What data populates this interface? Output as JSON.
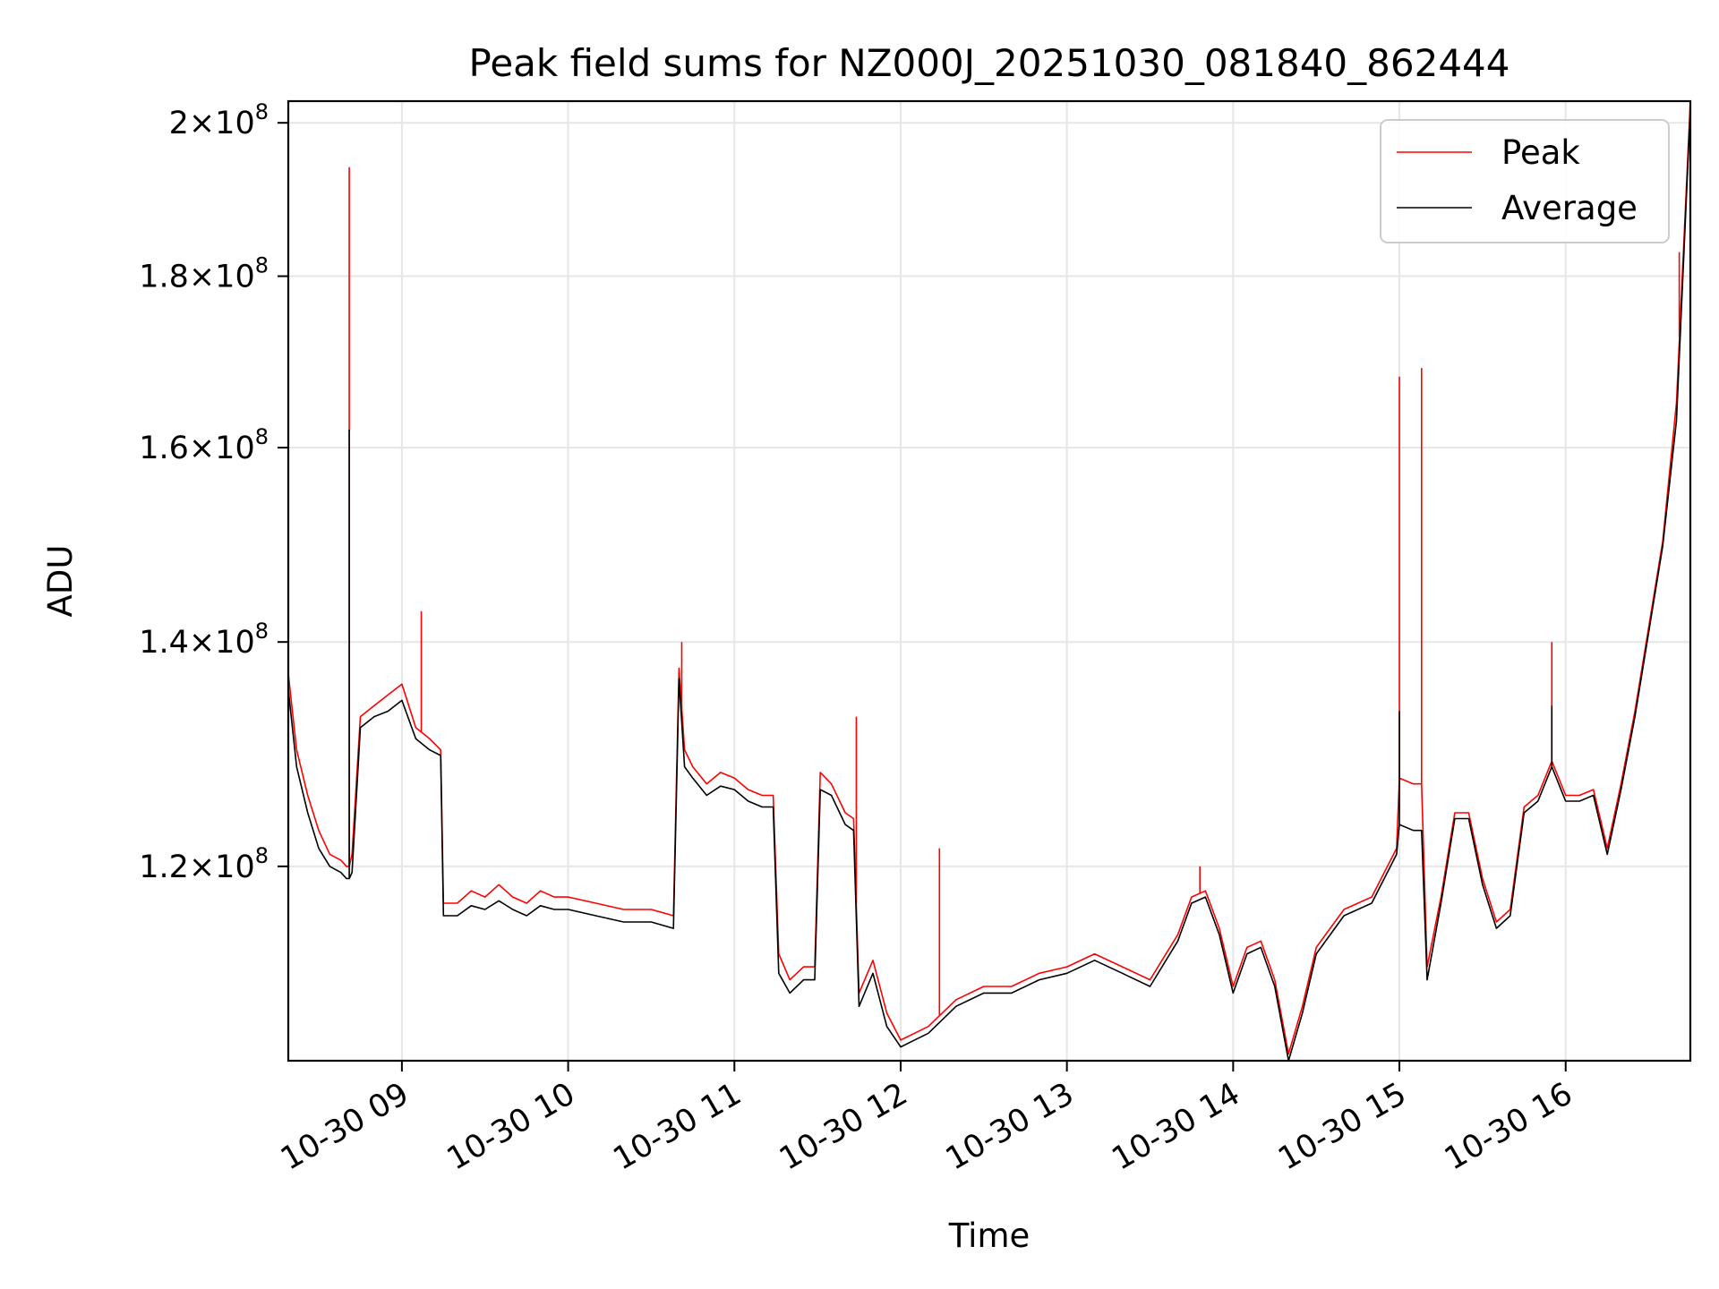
{
  "chart_data": {
    "type": "line",
    "title": "Peak field sums for NZ000J_20251030_081840_862444",
    "xlabel": "Time",
    "ylabel": "ADU",
    "y_scale": "log",
    "grid": true,
    "legend_position": "top-right",
    "xlim": [
      "2025-10-30 08:19",
      "2025-10-30 16:45"
    ],
    "ylim": [
      105000000,
      203000000
    ],
    "x_ticks": [
      "2025-10-30 09:00",
      "2025-10-30 10:00",
      "2025-10-30 11:00",
      "2025-10-30 12:00",
      "2025-10-30 13:00",
      "2025-10-30 14:00",
      "2025-10-30 15:00",
      "2025-10-30 16:00"
    ],
    "x_tick_labels": [
      "10-30 09",
      "10-30 10",
      "10-30 11",
      "10-30 12",
      "10-30 13",
      "10-30 14",
      "10-30 15",
      "10-30 16"
    ],
    "y_ticks": [
      {
        "value": 120000000,
        "mantissa": "1.2",
        "exponent": "8"
      },
      {
        "value": 140000000,
        "mantissa": "1.4",
        "exponent": "8"
      },
      {
        "value": 160000000,
        "mantissa": "1.6",
        "exponent": "8"
      },
      {
        "value": 180000000,
        "mantissa": "1.8",
        "exponent": "8"
      },
      {
        "value": 200000000,
        "mantissa": "2",
        "exponent": "8"
      }
    ],
    "series": [
      {
        "name": "Peak",
        "color": "#ff0000",
        "x": [
          "2025-10-30 08:19",
          "2025-10-30 08:22",
          "2025-10-30 08:26",
          "2025-10-30 08:30",
          "2025-10-30 08:34",
          "2025-10-30 08:38",
          "2025-10-30 08:40",
          "2025-10-30 08:41",
          "2025-10-30 08:42",
          "2025-10-30 08:45",
          "2025-10-30 08:50",
          "2025-10-30 08:55",
          "2025-10-30 09:00",
          "2025-10-30 09:05",
          "2025-10-30 09:10",
          "2025-10-30 09:14",
          "2025-10-30 09:15",
          "2025-10-30 09:20",
          "2025-10-30 09:25",
          "2025-10-30 09:30",
          "2025-10-30 09:35",
          "2025-10-30 09:40",
          "2025-10-30 09:45",
          "2025-10-30 09:50",
          "2025-10-30 09:55",
          "2025-10-30 10:00",
          "2025-10-30 10:10",
          "2025-10-30 10:20",
          "2025-10-30 10:30",
          "2025-10-30 10:38",
          "2025-10-30 10:40",
          "2025-10-30 10:42",
          "2025-10-30 10:45",
          "2025-10-30 10:50",
          "2025-10-30 10:55",
          "2025-10-30 11:00",
          "2025-10-30 11:05",
          "2025-10-30 11:10",
          "2025-10-30 11:14",
          "2025-10-30 11:16",
          "2025-10-30 11:20",
          "2025-10-30 11:25",
          "2025-10-30 11:29",
          "2025-10-30 11:31",
          "2025-10-30 11:35",
          "2025-10-30 11:40",
          "2025-10-30 11:43",
          "2025-10-30 11:45",
          "2025-10-30 11:50",
          "2025-10-30 11:55",
          "2025-10-30 12:00",
          "2025-10-30 12:10",
          "2025-10-30 12:20",
          "2025-10-30 12:30",
          "2025-10-30 12:40",
          "2025-10-30 12:50",
          "2025-10-30 13:00",
          "2025-10-30 13:10",
          "2025-10-30 13:20",
          "2025-10-30 13:30",
          "2025-10-30 13:40",
          "2025-10-30 13:45",
          "2025-10-30 13:50",
          "2025-10-30 13:55",
          "2025-10-30 14:00",
          "2025-10-30 14:05",
          "2025-10-30 14:10",
          "2025-10-30 14:15",
          "2025-10-30 14:20",
          "2025-10-30 14:25",
          "2025-10-30 14:30",
          "2025-10-30 14:40",
          "2025-10-30 14:50",
          "2025-10-30 14:59",
          "2025-10-30 15:00",
          "2025-10-30 15:05",
          "2025-10-30 15:08",
          "2025-10-30 15:10",
          "2025-10-30 15:15",
          "2025-10-30 15:20",
          "2025-10-30 15:25",
          "2025-10-30 15:30",
          "2025-10-30 15:35",
          "2025-10-30 15:40",
          "2025-10-30 15:45",
          "2025-10-30 15:50",
          "2025-10-30 15:55",
          "2025-10-30 16:00",
          "2025-10-30 16:05",
          "2025-10-30 16:10",
          "2025-10-30 16:15",
          "2025-10-30 16:20",
          "2025-10-30 16:25",
          "2025-10-30 16:30",
          "2025-10-30 16:35",
          "2025-10-30 16:40",
          "2025-10-30 16:45"
        ],
        "values": [
          137000000,
          130000000,
          126000000,
          123000000,
          121000000,
          120500000,
          120000000,
          120000000,
          121000000,
          133000000,
          134000000,
          135000000,
          136000000,
          132000000,
          131000000,
          130000000,
          117000000,
          117000000,
          118000000,
          117500000,
          118500000,
          117500000,
          117000000,
          118000000,
          117500000,
          117500000,
          117000000,
          116500000,
          116500000,
          116000000,
          137500000,
          130000000,
          128500000,
          127000000,
          128000000,
          127500000,
          126500000,
          126000000,
          126000000,
          113000000,
          111000000,
          112000000,
          112000000,
          128000000,
          127000000,
          124500000,
          124000000,
          110000000,
          112500000,
          108500000,
          106500000,
          107500000,
          109500000,
          110500000,
          110500000,
          111500000,
          112000000,
          113000000,
          112000000,
          111000000,
          114500000,
          117500000,
          118000000,
          115000000,
          110500000,
          113500000,
          114000000,
          111000000,
          105500000,
          109000000,
          113500000,
          116500000,
          117500000,
          121500000,
          127500000,
          127000000,
          127000000,
          112000000,
          117500000,
          124500000,
          124500000,
          119000000,
          115500000,
          116500000,
          125000000,
          126000000,
          129000000,
          126000000,
          126000000,
          126500000,
          121500000,
          127000000,
          133500000,
          141500000,
          150000000,
          165000000,
          203000000
        ]
      },
      {
        "name": "Average",
        "color": "#000000",
        "x": [
          "2025-10-30 08:19",
          "2025-10-30 08:22",
          "2025-10-30 08:26",
          "2025-10-30 08:30",
          "2025-10-30 08:34",
          "2025-10-30 08:38",
          "2025-10-30 08:40",
          "2025-10-30 08:41",
          "2025-10-30 08:42",
          "2025-10-30 08:45",
          "2025-10-30 08:50",
          "2025-10-30 08:55",
          "2025-10-30 09:00",
          "2025-10-30 09:05",
          "2025-10-30 09:10",
          "2025-10-30 09:14",
          "2025-10-30 09:15",
          "2025-10-30 09:20",
          "2025-10-30 09:25",
          "2025-10-30 09:30",
          "2025-10-30 09:35",
          "2025-10-30 09:40",
          "2025-10-30 09:45",
          "2025-10-30 09:50",
          "2025-10-30 09:55",
          "2025-10-30 10:00",
          "2025-10-30 10:10",
          "2025-10-30 10:20",
          "2025-10-30 10:30",
          "2025-10-30 10:38",
          "2025-10-30 10:40",
          "2025-10-30 10:42",
          "2025-10-30 10:45",
          "2025-10-30 10:50",
          "2025-10-30 10:55",
          "2025-10-30 11:00",
          "2025-10-30 11:05",
          "2025-10-30 11:10",
          "2025-10-30 11:14",
          "2025-10-30 11:16",
          "2025-10-30 11:20",
          "2025-10-30 11:25",
          "2025-10-30 11:29",
          "2025-10-30 11:31",
          "2025-10-30 11:35",
          "2025-10-30 11:40",
          "2025-10-30 11:43",
          "2025-10-30 11:45",
          "2025-10-30 11:50",
          "2025-10-30 11:55",
          "2025-10-30 12:00",
          "2025-10-30 12:10",
          "2025-10-30 12:20",
          "2025-10-30 12:30",
          "2025-10-30 12:40",
          "2025-10-30 12:50",
          "2025-10-30 13:00",
          "2025-10-30 13:10",
          "2025-10-30 13:20",
          "2025-10-30 13:30",
          "2025-10-30 13:40",
          "2025-10-30 13:45",
          "2025-10-30 13:50",
          "2025-10-30 13:55",
          "2025-10-30 14:00",
          "2025-10-30 14:05",
          "2025-10-30 14:10",
          "2025-10-30 14:15",
          "2025-10-30 14:20",
          "2025-10-30 14:25",
          "2025-10-30 14:30",
          "2025-10-30 14:40",
          "2025-10-30 14:50",
          "2025-10-30 14:59",
          "2025-10-30 15:00",
          "2025-10-30 15:05",
          "2025-10-30 15:08",
          "2025-10-30 15:10",
          "2025-10-30 15:15",
          "2025-10-30 15:20",
          "2025-10-30 15:25",
          "2025-10-30 15:30",
          "2025-10-30 15:35",
          "2025-10-30 15:40",
          "2025-10-30 15:45",
          "2025-10-30 15:50",
          "2025-10-30 15:55",
          "2025-10-30 16:00",
          "2025-10-30 16:05",
          "2025-10-30 16:10",
          "2025-10-30 16:15",
          "2025-10-30 16:20",
          "2025-10-30 16:25",
          "2025-10-30 16:30",
          "2025-10-30 16:35",
          "2025-10-30 16:40",
          "2025-10-30 16:45"
        ],
        "values": [
          135500000,
          128500000,
          124500000,
          121500000,
          120000000,
          119500000,
          119000000,
          119000000,
          119500000,
          132000000,
          133000000,
          133500000,
          134500000,
          131000000,
          130000000,
          129500000,
          116000000,
          116000000,
          116800000,
          116500000,
          117200000,
          116500000,
          116000000,
          116800000,
          116500000,
          116500000,
          116000000,
          115500000,
          115500000,
          115000000,
          136500000,
          128500000,
          127500000,
          126000000,
          126800000,
          126500000,
          125500000,
          125000000,
          125000000,
          111500000,
          110000000,
          111000000,
          111000000,
          126500000,
          126000000,
          123500000,
          123000000,
          109000000,
          111500000,
          107500000,
          106000000,
          107000000,
          109000000,
          110000000,
          110000000,
          111000000,
          111500000,
          112500000,
          111500000,
          110500000,
          114000000,
          117000000,
          117500000,
          114500000,
          110000000,
          113000000,
          113500000,
          110500000,
          105000000,
          108500000,
          113000000,
          116000000,
          117000000,
          121000000,
          123500000,
          123000000,
          123000000,
          111000000,
          117000000,
          124000000,
          124000000,
          118500000,
          115000000,
          116000000,
          124500000,
          125500000,
          128500000,
          125500000,
          125500000,
          126000000,
          121000000,
          126500000,
          133000000,
          141000000,
          149500000,
          163000000,
          202000000
        ]
      }
    ],
    "spikes": {
      "Peak": [
        {
          "x": "2025-10-30 08:41",
          "value": 194000000
        },
        {
          "x": "2025-10-30 09:07",
          "value": 143000000
        },
        {
          "x": "2025-10-30 10:41",
          "value": 140000000
        },
        {
          "x": "2025-10-30 11:44",
          "value": 133000000
        },
        {
          "x": "2025-10-30 12:14",
          "value": 121500000
        },
        {
          "x": "2025-10-30 13:48",
          "value": 120000000
        },
        {
          "x": "2025-10-30 15:00",
          "value": 168000000
        },
        {
          "x": "2025-10-30 15:08",
          "value": 169000000
        },
        {
          "x": "2025-10-30 15:55",
          "value": 140000000
        },
        {
          "x": "2025-10-30 16:41",
          "value": 183000000
        }
      ],
      "Average": [
        {
          "x": "2025-10-30 08:41",
          "value": 162000000
        },
        {
          "x": "2025-10-30 15:00",
          "value": 133500000
        },
        {
          "x": "2025-10-30 15:55",
          "value": 134000000
        }
      ]
    }
  }
}
